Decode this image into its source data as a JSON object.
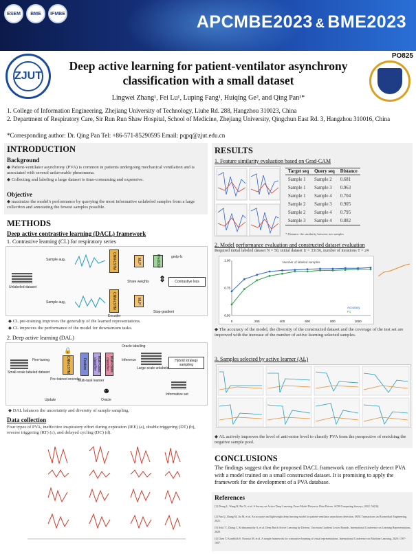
{
  "header": {
    "conference_left": "APCMBE2023",
    "conference_amp": "&",
    "conference_right": "BME2023",
    "poster_id": "PO825",
    "logos": [
      "ESEM",
      "BME",
      "IFMBE"
    ]
  },
  "paper": {
    "title": "Deep active learning for patient-ventilator asynchrony classification with a small dataset",
    "authors": "Lingwei Zhang¹, Fei Lu¹, Luping Fang¹, Huiqing Ge², and Qing Pan¹*",
    "affiliations": [
      "1. College of Information Engineering, Zhejiang University of Technology, Liuhe Rd. 288, Hangzhou 310023, China",
      "2. Department of Respiratory Care, Sir Run Run Shaw Hospital, School of Medicine, Zhejiang University, Qingchun East Rd. 3, Hangzhou 310016, China",
      "*Corresponding author: Dr. Qing Pan Tel: +86-571-85290595 Email: pqpq@zjut.edu.cn"
    ]
  },
  "introduction": {
    "heading": "INTRODUCTION",
    "background_heading": "Background",
    "background_bullets": [
      "Patient-ventilator asynchrony (PVA) is common in patients undergoing mechanical ventilation and is associated with several unfavorable phenomena.",
      "Collecting and labeling a large dataset is time-consuming and expensive."
    ],
    "objective_heading": "Objective",
    "objective_bullets": [
      "maximize the model's performance by querying the most informative unlabeled samples from a large collection and annotating the fewest samples possible."
    ]
  },
  "methods": {
    "heading": "METHODS",
    "dacl_heading": "Deep active contrastive learning (DACL) framework",
    "cl_heading": "1. Contrastive learning (CL) for respiratory series",
    "cl_labels": {
      "sample_a": "Sample aug₁",
      "sample_b": "Sample aug₂",
      "encoder_top": "CNN-LSTM",
      "encoder_bottom": "CNN-LSTM",
      "share_weights": "Share weights",
      "contrastive_loss": "Contrastive loss",
      "pred_top": "gmlp-fc",
      "pred_bottom": "Stop-gradient",
      "unlabeled": "Unlabeled dataset",
      "encoder_label": "Encoder",
      "projector": "MLP",
      "predictor": "Predictor"
    },
    "cl_bullets": [
      "CL pre-training improves the generality of the learned representations.",
      "CL improves the performance of the model for downstream tasks."
    ],
    "dal_heading": "2. Deep active learning (DAL)",
    "dal_labels": {
      "small_labeled": "Small-scale labeled dataset",
      "fine_tuning": "Fine-tuning",
      "pretrained": "Pre-trained encoder",
      "encoder": "CNN-LSTM",
      "box1": "Feature",
      "box2": "Multi-class classifier",
      "box3": "Multi-class classifier",
      "multitask": "Multi-task learner",
      "inference": "Inference",
      "large_unlabeled": "Large-scale unlabeled dataset",
      "hybrid": "Hybrid strategy sampling",
      "oracle_loop": "Oracle labelling",
      "update": "Update",
      "oracle": "Oracle",
      "informative": "Informative set"
    },
    "dal_bullets": [
      "DAL balances the uncertainty and diversity of sample sampling."
    ],
    "data_heading": "Data collection",
    "data_text": "Four types of PVA, ineffective inspiratory effort during expiration (IEE) (a), double triggering (DT) (b), reverse triggering (RT) (c), and delayed cycling (DC) (d)."
  },
  "results": {
    "heading": "RESULTS",
    "r1_heading": "1. Feature similarity evaluation based on Grad-CAM",
    "table": {
      "columns": [
        "Target seq",
        "Query seq",
        "Distance"
      ],
      "rows": [
        [
          "Sample 1",
          "Sample 2",
          "0.681"
        ],
        [
          "Sample 1",
          "Sample 3",
          "0.963"
        ],
        [
          "Sample 1",
          "Sample 4",
          "0.704"
        ],
        [
          "Sample 2",
          "Sample 3",
          "0.905"
        ],
        [
          "Sample 2",
          "Sample 4",
          "0.795"
        ],
        [
          "Sample 3",
          "Sample 4",
          "0.882"
        ]
      ],
      "note": "* Distance: the similarity between two samples"
    },
    "r2_heading": "2. Model performance evaluation and constructed dataset evaluation",
    "r2_sub": "Required initial labeled dataset N = 50, initial dataset U = 33156, number of iterations T = 24",
    "chart_data": {
      "type": "line",
      "x": [
        0,
        100,
        200,
        300,
        400,
        500,
        600,
        700,
        800,
        900,
        1000,
        1100
      ],
      "series": [
        {
          "name": "Accuracy",
          "values": [
            0.72,
            0.83,
            0.87,
            0.9,
            0.91,
            0.915,
            0.92,
            0.925,
            0.925,
            0.93,
            0.93,
            0.935
          ]
        },
        {
          "name": "F1",
          "values": [
            0.6,
            0.74,
            0.82,
            0.86,
            0.88,
            0.9,
            0.9,
            0.91,
            0.91,
            0.915,
            0.92,
            0.92
          ]
        }
      ],
      "ylim": [
        0.5,
        1.0
      ],
      "xlabel": "Number of labeled samples",
      "ylabel": ""
    },
    "r2_bullets": [
      "The accuracy of the model, the diversity of the constructed dataset and the coverage of the test set are improved with the increase of the number of active learning selected samples."
    ],
    "r3_heading": "3. Samples selected by active learner (AL)",
    "r3_bullets": [
      "AL actively improves the level of anti-noise level to classify PVA from the perspective of enriching the negative sample pool."
    ]
  },
  "conclusions": {
    "heading": "CONCLUSIONS",
    "text": "The findings suggest that the proposed DACL framework can effectively detect PVA with a model trained on a small constructed dataset. It is promising to apply the framework for the development of a PVA database."
  },
  "references": {
    "heading": "References",
    "items": [
      "[1] Zhang L, Wang H, Bai X, et al. A Survey on Active Deep Learning: From Model Driven to Data Driven. ACM Computing Surveys, 2022, 54(10).",
      "[2] Pan Q, Zhang M, Jia M, et al. An accurate and lightweight deep learning model for patient-ventilator asynchrony detection. IEEE Transactions on Biomedical Engineering, 2021.",
      "[3] Ash J T, Zhang C, Krishnamurthy A, et al. Deep Batch Active Learning by Diverse, Uncertain Gradient Lower Bounds. International Conference on Learning Representations, 2020.",
      "[4] Chen T, Kornblith S, Norouzi M, et al. A simple framework for contrastive learning of visual representations. International Conference on Machine Learning, 2020: 1597-1607."
    ]
  },
  "colors": {
    "banner_dark": "#0b1a4a",
    "banner_light": "#2a6fd6",
    "panel_bg": "#f0f0f0",
    "series_blue": "#2a62c9",
    "series_green": "#2e9e4a",
    "wave_red": "#d23a2a",
    "wave_cyan": "#1f9bb8",
    "accent_orange": "#e58a2a"
  }
}
